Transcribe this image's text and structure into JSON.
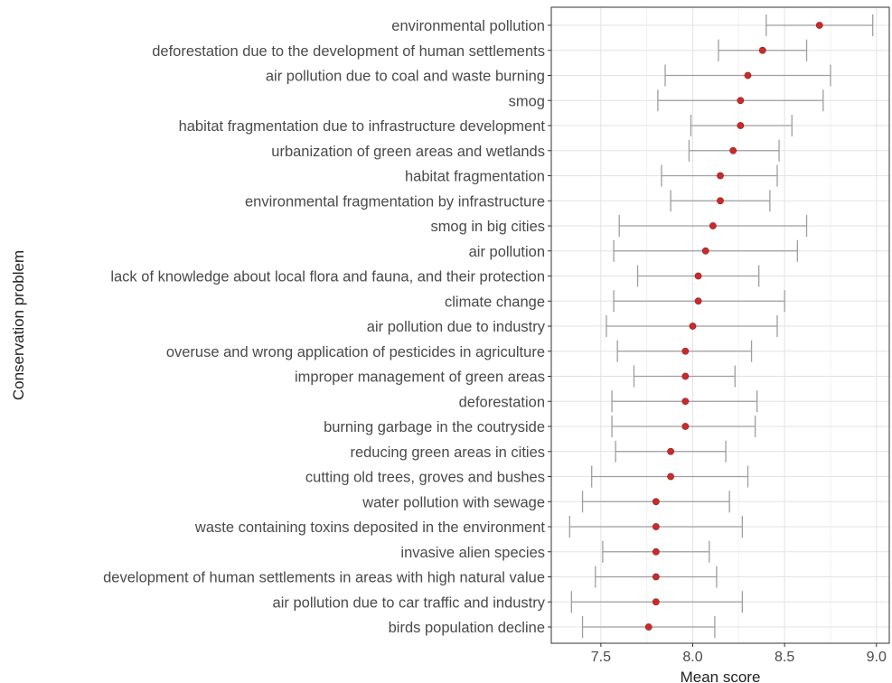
{
  "chart_data": {
    "type": "scatter",
    "title": "",
    "xlabel": "Mean score",
    "ylabel": "Conservation problem",
    "xlim": [
      7.23,
      9.07
    ],
    "x_ticks": [
      "7.5",
      "8.0",
      "8.5",
      "9.0"
    ],
    "x_tick_values": [
      7.5,
      8.0,
      8.5,
      9.0
    ],
    "grid": true,
    "point_color": "#cc2a2a",
    "errorbar_color": "#9e9e9e",
    "categories": [
      "environmental pollution",
      "deforestation due to the development of human settlements",
      "air pollution due to coal and waste burning",
      "smog",
      "habitat fragmentation due to infrastructure development",
      "urbanization of green areas and wetlands",
      "habitat fragmentation",
      "environmental fragmentation by infrastructure",
      "smog in big cities",
      "air pollution",
      "lack of knowledge about local flora and fauna, and their protection",
      "climate change",
      "air pollution due to industry",
      "overuse and wrong application of pesticides in agriculture",
      "improper management of green areas",
      "deforestation",
      "burning garbage in the coutryside",
      "reducing green areas in cities",
      "cutting old trees, groves and bushes",
      "water pollution with sewage",
      "waste containing toxins deposited in the environment",
      "invasive alien species",
      "development of human settlements in areas with high natural value",
      "air pollution due to car traffic and industry",
      "birds population decline"
    ],
    "mean": [
      8.69,
      8.38,
      8.3,
      8.26,
      8.26,
      8.22,
      8.15,
      8.15,
      8.11,
      8.07,
      8.03,
      8.03,
      8.0,
      7.96,
      7.96,
      7.96,
      7.96,
      7.88,
      7.88,
      7.8,
      7.8,
      7.8,
      7.8,
      7.8,
      7.76
    ],
    "lower": [
      8.4,
      8.14,
      7.85,
      7.81,
      7.99,
      7.98,
      7.83,
      7.88,
      7.6,
      7.57,
      7.7,
      7.57,
      7.53,
      7.59,
      7.68,
      7.56,
      7.56,
      7.58,
      7.45,
      7.4,
      7.33,
      7.51,
      7.47,
      7.34,
      7.4
    ],
    "upper": [
      8.98,
      8.62,
      8.75,
      8.71,
      8.54,
      8.47,
      8.46,
      8.42,
      8.62,
      8.57,
      8.36,
      8.5,
      8.46,
      8.32,
      8.23,
      8.35,
      8.34,
      8.18,
      8.3,
      8.2,
      8.27,
      8.09,
      8.13,
      8.27,
      8.12
    ]
  }
}
